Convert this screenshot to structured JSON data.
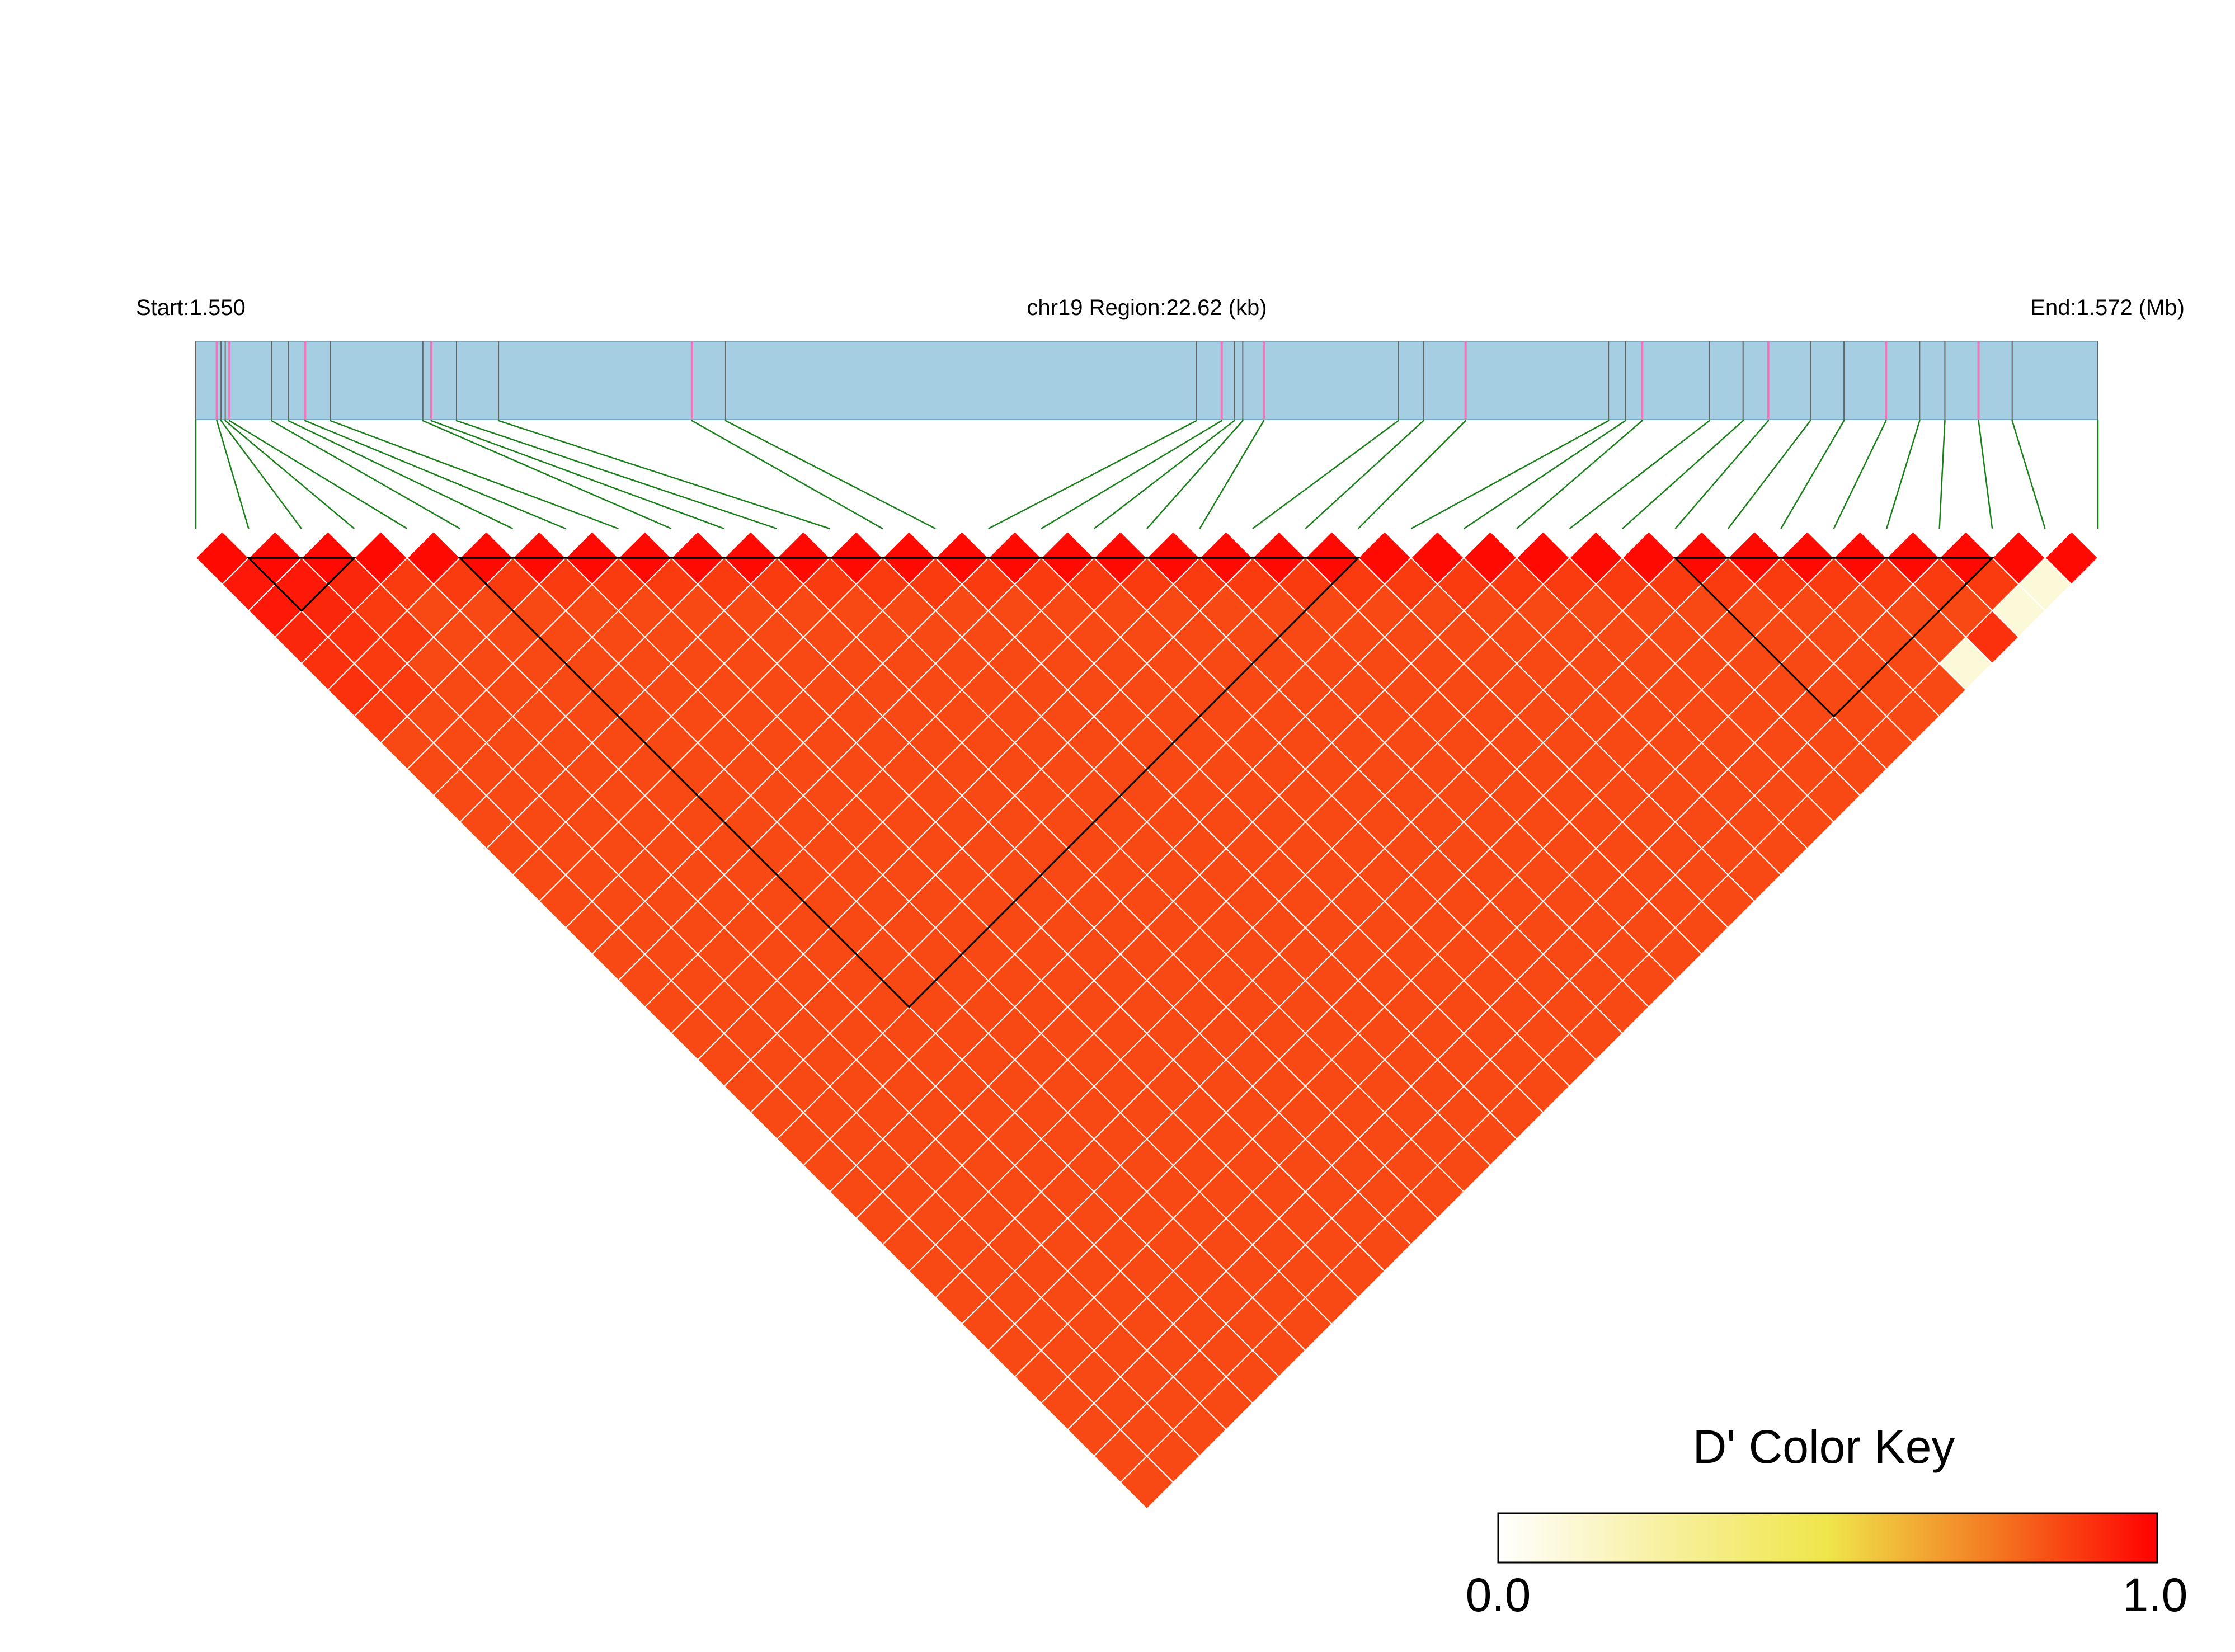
{
  "chart_data": {
    "type": "heatmap",
    "subtype": "LD triangle heatmap",
    "metric": "D'",
    "header": {
      "start_label": "Start:1.550",
      "region_label": "chr19 Region:22.62 (kb)",
      "end_label": "End:1.572 (Mb)"
    },
    "region": {
      "start_mb": 1.55,
      "end_mb": 1.572,
      "n_snps": 37,
      "snp_positions_kb": [
        0.0,
        0.25,
        0.3,
        0.35,
        0.4,
        0.9,
        1.1,
        1.3,
        1.6,
        2.7,
        2.8,
        3.1,
        3.6,
        5.9,
        6.3,
        11.9,
        12.2,
        12.35,
        12.45,
        12.7,
        14.3,
        14.6,
        15.1,
        16.8,
        17.0,
        17.2,
        18.0,
        18.4,
        18.7,
        19.2,
        19.6,
        20.1,
        20.5,
        20.8,
        21.2,
        21.6,
        22.62
      ],
      "highlight_color": "#ee77bb",
      "track_color": "#a6cee3"
    },
    "cell_values_note_comment": "",
    "ld_values": [
      [
        0.98,
        0.98,
        0.98,
        0.98,
        0.98,
        0.98,
        0.98,
        0.98,
        0.98,
        0.98,
        0.98,
        0.98,
        0.98,
        0.98,
        0.98,
        0.98,
        0.98,
        0.98,
        0.98,
        0.98,
        0.98,
        0.98,
        0.98,
        0.98,
        0.98,
        0.98,
        0.98,
        0.98,
        0.98,
        0.98,
        0.98,
        0.98,
        0.98,
        0.98,
        0.98,
        0.98
      ],
      [
        0.95,
        0.95,
        0.92,
        0.88,
        0.88,
        0.88,
        0.88,
        0.88,
        0.88,
        0.88,
        0.88,
        0.88,
        0.88,
        0.88,
        0.88,
        0.88,
        0.88,
        0.88,
        0.88,
        0.88,
        0.88,
        0.88,
        0.88,
        0.88,
        0.88,
        0.88,
        0.88,
        0.88,
        0.88,
        0.88,
        0.88,
        0.88,
        0.88,
        0.88,
        0.1
      ],
      [
        0.95,
        0.92,
        0.88,
        0.85,
        0.85,
        0.85,
        0.85,
        0.85,
        0.85,
        0.85,
        0.85,
        0.85,
        0.85,
        0.85,
        0.85,
        0.85,
        0.85,
        0.85,
        0.85,
        0.85,
        0.85,
        0.85,
        0.85,
        0.85,
        0.85,
        0.85,
        0.85,
        0.85,
        0.85,
        0.85,
        0.85,
        0.85,
        0.85,
        0.1
      ],
      [
        0.92,
        0.9,
        0.88,
        0.85,
        0.85,
        0.85,
        0.85,
        0.85,
        0.85,
        0.85,
        0.85,
        0.85,
        0.85,
        0.85,
        0.85,
        0.85,
        0.85,
        0.85,
        0.85,
        0.85,
        0.85,
        0.85,
        0.85,
        0.85,
        0.85,
        0.85,
        0.85,
        0.85,
        0.85,
        0.85,
        0.85,
        0.85,
        0.9
      ],
      [
        0.9,
        0.88,
        0.85,
        0.85,
        0.85,
        0.85,
        0.85,
        0.85,
        0.85,
        0.85,
        0.85,
        0.85,
        0.85,
        0.85,
        0.85,
        0.85,
        0.85,
        0.85,
        0.85,
        0.85,
        0.85,
        0.85,
        0.85,
        0.85,
        0.85,
        0.85,
        0.85,
        0.85,
        0.85,
        0.85,
        0.85,
        0.1
      ],
      [
        0.9,
        0.88,
        0.85,
        0.85,
        0.85,
        0.85,
        0.85,
        0.85,
        0.85,
        0.85,
        0.85,
        0.85,
        0.85,
        0.85,
        0.85,
        0.85,
        0.85,
        0.85,
        0.85,
        0.85,
        0.85,
        0.85,
        0.85,
        0.85,
        0.85,
        0.85,
        0.85,
        0.85,
        0.85,
        0.85,
        0.85
      ],
      [
        0.88,
        0.85,
        0.85,
        0.85,
        0.85,
        0.85,
        0.85,
        0.85,
        0.85,
        0.85,
        0.85,
        0.85,
        0.85,
        0.85,
        0.85,
        0.85,
        0.85,
        0.85,
        0.85,
        0.85,
        0.85,
        0.85,
        0.85,
        0.85,
        0.85,
        0.85,
        0.85,
        0.85,
        0.85,
        0.85
      ],
      [
        0.85,
        0.85,
        0.85,
        0.85,
        0.85,
        0.85,
        0.85,
        0.85,
        0.85,
        0.85,
        0.85,
        0.85,
        0.85,
        0.85,
        0.85,
        0.85,
        0.85,
        0.85,
        0.85,
        0.85,
        0.85,
        0.85,
        0.85,
        0.85,
        0.85,
        0.85,
        0.85,
        0.85,
        0.85
      ]
    ],
    "color_key": {
      "title": "D' Color Key",
      "min_label": "0.0",
      "max_label": "1.0",
      "min": 0.0,
      "max": 1.0,
      "stops": [
        {
          "v": 0.0,
          "color": "#ffffff"
        },
        {
          "v": 0.25,
          "color": "#f8f0a0"
        },
        {
          "v": 0.5,
          "color": "#efe64a"
        },
        {
          "v": 0.75,
          "color": "#f47a22"
        },
        {
          "v": 1.0,
          "color": "#ff0000"
        }
      ]
    },
    "blocks": [
      {
        "from": 1,
        "to": 3
      },
      {
        "from": 5,
        "to": 22
      },
      {
        "from": 28,
        "to": 34
      }
    ],
    "colors": {
      "connector": "#1a7f1a",
      "cell_border": "#ffffff",
      "block_outline": "#000000"
    }
  }
}
